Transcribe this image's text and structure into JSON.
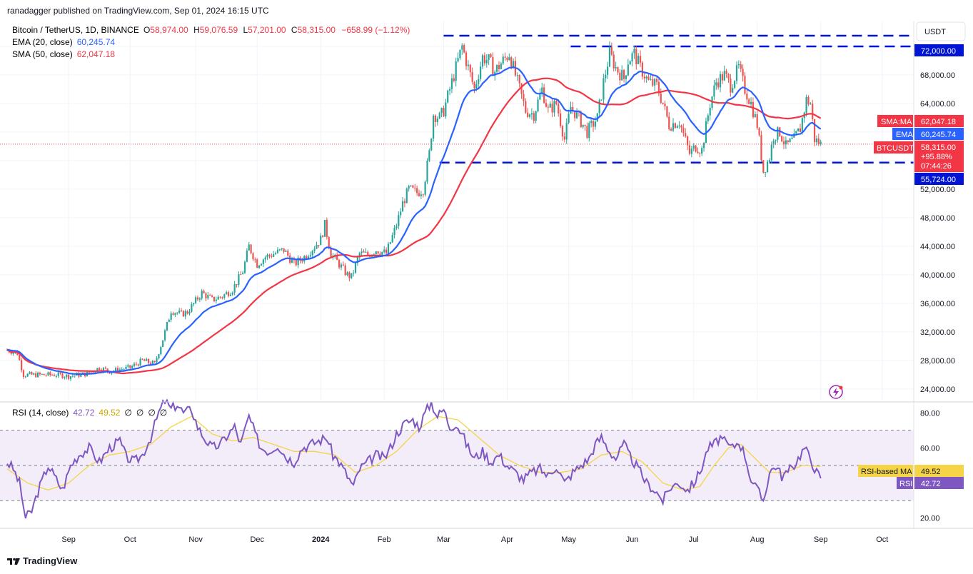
{
  "header": {
    "published": "ranadagger published on TradingView.com, Sep 01, 2024 16:15 UTC"
  },
  "legend": {
    "symbol": "Bitcoin / TetherUS, 1D, BINANCE",
    "o_label": "O",
    "o_value": "58,974.00",
    "h_label": "H",
    "h_value": "59,076.59",
    "l_label": "L",
    "l_value": "57,201.00",
    "c_label": "C",
    "c_value": "58,315.00",
    "change": "−658.99 (−1.12%)",
    "ema_label": "EMA (20, close)",
    "ema_value": "60,245.74",
    "sma_label": "SMA (50, close)",
    "sma_value": "62,047.18"
  },
  "currency": "USDT",
  "badges": {
    "level_high": "72,000.00",
    "sma_tag": "SMA:MA",
    "sma_val": "62,047.18",
    "ema_tag": "EMA",
    "ema_val": "60,245.74",
    "sym_tag": "BTCUSDT",
    "price": "58,315.00",
    "pct": "+95.88%",
    "countdown": "07:44:26",
    "level_low": "55,724.00"
  },
  "rsi_legend": {
    "label": "RSI (14, close)",
    "rsi": "42.72",
    "ma": "49.52",
    "na1": "∅",
    "na2": "∅",
    "na3": "∅",
    "na4": "∅"
  },
  "rsi_badges": {
    "ma_tag": "RSI-based MA",
    "ma_val": "49.52",
    "rsi_tag": "RSI",
    "rsi_val": "42.72"
  },
  "footer": {
    "brand": "TradingView"
  },
  "colors": {
    "up": "#26a69a",
    "down": "#ef5350",
    "ema": "#2962ff",
    "sma": "#f23645",
    "level": "#0015d4",
    "rsi": "#7e57c2",
    "rsi_ma": "#f5d547",
    "rsi_band": "#ede7f6"
  },
  "chart_data": {
    "type": "candlestick",
    "price_axis": {
      "min": 22500,
      "max": 75500,
      "ticks": [
        24000,
        28000,
        32000,
        36000,
        40000,
        44000,
        48000,
        52000,
        56000,
        60000,
        64000,
        68000,
        72000
      ],
      "tick_labels": [
        "24,000.00",
        "28,000.00",
        "32,000.00",
        "36,000.00",
        "40,000.00",
        "44,000.00",
        "48,000.00",
        "52,000.00",
        "",
        "",
        "64,000.00",
        "68,000.00",
        ""
      ]
    },
    "horizontal_levels": [
      72000,
      55724,
      73500
    ],
    "x_labels": [
      "Sep",
      "Oct",
      "Nov",
      "Dec",
      "2024",
      "Feb",
      "Mar",
      "Apr",
      "May",
      "Jun",
      "Jul",
      "Aug",
      "Sep",
      "Oct"
    ],
    "x_label_days": [
      30,
      60,
      92,
      122,
      153,
      184,
      213,
      244,
      274,
      305,
      335,
      366,
      397,
      427
    ],
    "last_day": 397,
    "anchors": [
      [
        0,
        29500
      ],
      [
        5,
        29000
      ],
      [
        8,
        26000
      ],
      [
        15,
        26000
      ],
      [
        25,
        26000
      ],
      [
        30,
        25800
      ],
      [
        40,
        26200
      ],
      [
        45,
        27000
      ],
      [
        50,
        26500
      ],
      [
        60,
        27000
      ],
      [
        66,
        28000
      ],
      [
        72,
        27500
      ],
      [
        76,
        31000
      ],
      [
        80,
        35000
      ],
      [
        85,
        34500
      ],
      [
        88,
        34800
      ],
      [
        95,
        37500
      ],
      [
        100,
        36500
      ],
      [
        105,
        37000
      ],
      [
        110,
        38000
      ],
      [
        115,
        40500
      ],
      [
        118,
        44000
      ],
      [
        122,
        41500
      ],
      [
        126,
        42500
      ],
      [
        135,
        43500
      ],
      [
        140,
        41500
      ],
      [
        145,
        42500
      ],
      [
        150,
        44000
      ],
      [
        153,
        45000
      ],
      [
        155,
        47000
      ],
      [
        158,
        43000
      ],
      [
        162,
        41500
      ],
      [
        166,
        40000
      ],
      [
        168,
        39700
      ],
      [
        172,
        43000
      ],
      [
        176,
        42800
      ],
      [
        180,
        43500
      ],
      [
        185,
        43000
      ],
      [
        190,
        47000
      ],
      [
        193,
        50000
      ],
      [
        196,
        52000
      ],
      [
        200,
        51500
      ],
      [
        203,
        52000
      ],
      [
        206,
        57000
      ],
      [
        208,
        62500
      ],
      [
        211,
        62000
      ],
      [
        213,
        63000
      ],
      [
        218,
        68000
      ],
      [
        222,
        72000
      ],
      [
        225,
        69000
      ],
      [
        228,
        66000
      ],
      [
        232,
        70500
      ],
      [
        235,
        70000
      ],
      [
        238,
        68500
      ],
      [
        242,
        70000
      ],
      [
        245,
        71000
      ],
      [
        250,
        66000
      ],
      [
        253,
        63000
      ],
      [
        257,
        62500
      ],
      [
        261,
        66000
      ],
      [
        264,
        63000
      ],
      [
        268,
        64000
      ],
      [
        272,
        59000
      ],
      [
        275,
        63500
      ],
      [
        279,
        62000
      ],
      [
        283,
        60000
      ],
      [
        288,
        62000
      ],
      [
        291,
        67000
      ],
      [
        294,
        71000
      ],
      [
        297,
        69000
      ],
      [
        301,
        67500
      ],
      [
        303,
        70000
      ],
      [
        306,
        71000
      ],
      [
        309,
        69000
      ],
      [
        313,
        67000
      ],
      [
        317,
        66500
      ],
      [
        320,
        64000
      ],
      [
        323,
        61000
      ],
      [
        328,
        61500
      ],
      [
        333,
        57000
      ],
      [
        336,
        58000
      ],
      [
        339,
        57500
      ],
      [
        343,
        64000
      ],
      [
        346,
        67000
      ],
      [
        350,
        68000
      ],
      [
        353,
        66500
      ],
      [
        357,
        69000
      ],
      [
        360,
        66000
      ],
      [
        363,
        64000
      ],
      [
        366,
        61000
      ],
      [
        369,
        54500
      ],
      [
        372,
        56500
      ],
      [
        374,
        59500
      ],
      [
        377,
        60000
      ],
      [
        380,
        58000
      ],
      [
        384,
        59000
      ],
      [
        387,
        60500
      ],
      [
        390,
        64500
      ],
      [
        392,
        64000
      ],
      [
        394,
        59000
      ],
      [
        397,
        58300
      ]
    ],
    "ema_20": {
      "name": "EMA (20, close)",
      "last": 60245.74
    },
    "sma_50": {
      "name": "SMA (50, close)",
      "last": 62047.18
    },
    "rsi": {
      "axis": {
        "min": 15,
        "max": 85,
        "ticks": [
          20,
          60,
          80
        ],
        "tick_labels": [
          "20.00",
          "60.00",
          "80.00"
        ]
      },
      "band": [
        30,
        70
      ],
      "mid": 50,
      "anchors": [
        [
          0,
          52
        ],
        [
          3,
          48
        ],
        [
          6,
          40
        ],
        [
          9,
          20
        ],
        [
          12,
          24
        ],
        [
          15,
          35
        ],
        [
          20,
          50
        ],
        [
          24,
          42
        ],
        [
          27,
          36
        ],
        [
          31,
          50
        ],
        [
          35,
          56
        ],
        [
          40,
          60
        ],
        [
          45,
          52
        ],
        [
          50,
          60
        ],
        [
          55,
          64
        ],
        [
          58,
          55
        ],
        [
          62,
          52
        ],
        [
          66,
          56
        ],
        [
          70,
          66
        ],
        [
          74,
          80
        ],
        [
          77,
          87
        ],
        [
          80,
          82
        ],
        [
          83,
          85
        ],
        [
          86,
          80
        ],
        [
          90,
          82
        ],
        [
          93,
          72
        ],
        [
          96,
          66
        ],
        [
          100,
          60
        ],
        [
          104,
          62
        ],
        [
          108,
          68
        ],
        [
          111,
          72
        ],
        [
          114,
          62
        ],
        [
          118,
          78
        ],
        [
          121,
          68
        ],
        [
          124,
          60
        ],
        [
          128,
          58
        ],
        [
          132,
          62
        ],
        [
          136,
          55
        ],
        [
          140,
          52
        ],
        [
          144,
          60
        ],
        [
          148,
          62
        ],
        [
          152,
          64
        ],
        [
          156,
          66
        ],
        [
          159,
          56
        ],
        [
          162,
          52
        ],
        [
          166,
          44
        ],
        [
          169,
          38
        ],
        [
          172,
          48
        ],
        [
          176,
          52
        ],
        [
          180,
          56
        ],
        [
          184,
          54
        ],
        [
          187,
          60
        ],
        [
          190,
          68
        ],
        [
          194,
          74
        ],
        [
          198,
          76
        ],
        [
          201,
          72
        ],
        [
          204,
          80
        ],
        [
          207,
          86
        ],
        [
          210,
          78
        ],
        [
          213,
          82
        ],
        [
          216,
          72
        ],
        [
          219,
          74
        ],
        [
          222,
          68
        ],
        [
          225,
          60
        ],
        [
          228,
          54
        ],
        [
          232,
          58
        ],
        [
          236,
          52
        ],
        [
          240,
          56
        ],
        [
          244,
          50
        ],
        [
          248,
          46
        ],
        [
          252,
          42
        ],
        [
          256,
          46
        ],
        [
          260,
          48
        ],
        [
          264,
          44
        ],
        [
          268,
          50
        ],
        [
          272,
          40
        ],
        [
          276,
          46
        ],
        [
          280,
          50
        ],
        [
          284,
          54
        ],
        [
          287,
          62
        ],
        [
          290,
          66
        ],
        [
          294,
          58
        ],
        [
          297,
          54
        ],
        [
          301,
          62
        ],
        [
          304,
          55
        ],
        [
          308,
          48
        ],
        [
          312,
          40
        ],
        [
          316,
          36
        ],
        [
          320,
          30
        ],
        [
          324,
          38
        ],
        [
          328,
          40
        ],
        [
          332,
          36
        ],
        [
          335,
          40
        ],
        [
          338,
          46
        ],
        [
          342,
          60
        ],
        [
          345,
          62
        ],
        [
          348,
          66
        ],
        [
          351,
          62
        ],
        [
          354,
          60
        ],
        [
          357,
          64
        ],
        [
          360,
          56
        ],
        [
          363,
          42
        ],
        [
          366,
          36
        ],
        [
          369,
          30
        ],
        [
          372,
          46
        ],
        [
          375,
          50
        ],
        [
          378,
          44
        ],
        [
          381,
          46
        ],
        [
          385,
          52
        ],
        [
          389,
          60
        ],
        [
          392,
          54
        ],
        [
          395,
          46
        ],
        [
          397,
          43
        ]
      ],
      "ma_anchors": [
        [
          0,
          48
        ],
        [
          10,
          40
        ],
        [
          20,
          36
        ],
        [
          30,
          40
        ],
        [
          40,
          50
        ],
        [
          50,
          56
        ],
        [
          60,
          58
        ],
        [
          70,
          62
        ],
        [
          80,
          72
        ],
        [
          90,
          78
        ],
        [
          100,
          68
        ],
        [
          110,
          64
        ],
        [
          120,
          66
        ],
        [
          130,
          62
        ],
        [
          140,
          58
        ],
        [
          150,
          58
        ],
        [
          160,
          56
        ],
        [
          170,
          46
        ],
        [
          180,
          50
        ],
        [
          190,
          58
        ],
        [
          200,
          70
        ],
        [
          210,
          78
        ],
        [
          220,
          76
        ],
        [
          230,
          66
        ],
        [
          240,
          56
        ],
        [
          250,
          50
        ],
        [
          260,
          46
        ],
        [
          270,
          46
        ],
        [
          280,
          48
        ],
        [
          290,
          56
        ],
        [
          300,
          58
        ],
        [
          310,
          52
        ],
        [
          320,
          40
        ],
        [
          330,
          36
        ],
        [
          338,
          38
        ],
        [
          345,
          50
        ],
        [
          352,
          60
        ],
        [
          358,
          62
        ],
        [
          365,
          54
        ],
        [
          372,
          46
        ],
        [
          380,
          46
        ],
        [
          388,
          50
        ],
        [
          397,
          49.5
        ]
      ],
      "last": 42.72,
      "ma_last": 49.52
    }
  }
}
